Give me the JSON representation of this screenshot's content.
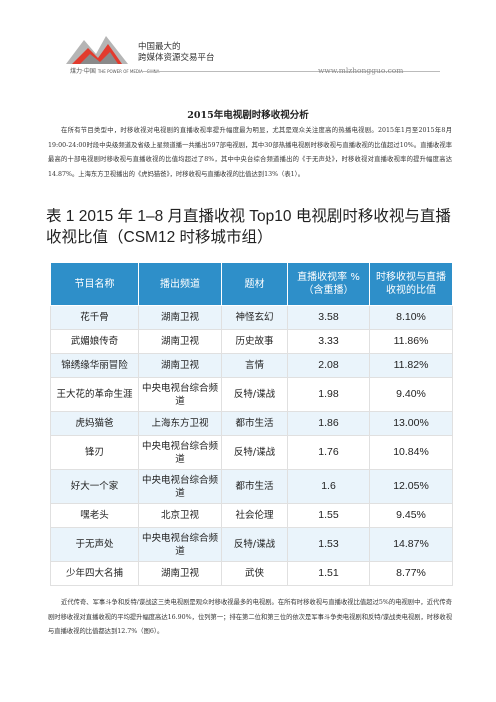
{
  "header": {
    "logo_text": "煤力·中国",
    "logo_subtext": "THE POWER OF MEDIA · CHINA",
    "brand_line1": "中国最大的",
    "brand_line2": "跨媒体资源交易平台",
    "website": "www.mlzhongguo.com"
  },
  "document": {
    "title": "2015年电视剧时移收视分析",
    "paragraph1": "在所有节目类型中，时移收视对电视剧的直播收视率提升幅度最为明显，尤其是观众关注度高的热播电视剧。2015年1月至2015年8月19:00-24:00时段中央级频道及省级上星频道播一共播出597部电视剧，其中30部热播电视剧时移收视与直播收视的比值超过10%。直播收视率最高的十部电视剧时移收视与直播收视的比值均超过了8%，其中中央台综合频道播出的《于无声处》，时移收视对直播收视率的提升幅度高达14.87%。上海东方卫视播出的《虎妈猫爸》，时移收视与直播收视的比值达到13%（表1）。",
    "table_heading": "表 1 2015 年 1–8 月直播收视 Top10 电视剧时移收视与直播收视比值（CSM12 时移城市组）",
    "paragraph2": "近代传奇、军事斗争和反特/谍战这三类电视剧是观众时移收视最多的电视剧。在所有时移收视与直播收视比值超过5%的电视剧中，近代传奇剧时移收视对直播收视的平均提升幅度高达16.90%，位列第一；排在第二位和第三位的依次是军事斗争类电视剧和反特/谍战类电视剧，时移收视与直播收视的比值都达到12.7%（图6）。"
  },
  "table": {
    "headers": [
      "节目名称",
      "播出频道",
      "题材",
      "直播收视率 %（含重播）",
      "时移收视与直播收视的比值"
    ],
    "rows": [
      {
        "name": "花千骨",
        "channel": "湖南卫视",
        "genre": "神怪玄幻",
        "rating": "3.58",
        "ratio": "8.10%"
      },
      {
        "name": "武媚娘传奇",
        "channel": "湖南卫视",
        "genre": "历史故事",
        "rating": "3.33",
        "ratio": "11.86%"
      },
      {
        "name": "锦绣缘华丽冒险",
        "channel": "湖南卫视",
        "genre": "言情",
        "rating": "2.08",
        "ratio": "11.82%"
      },
      {
        "name": "王大花的革命生涯",
        "channel": "中央电视台综合频道",
        "genre": "反特/谍战",
        "rating": "1.98",
        "ratio": "9.40%"
      },
      {
        "name": "虎妈猫爸",
        "channel": "上海东方卫视",
        "genre": "都市生活",
        "rating": "1.86",
        "ratio": "13.00%"
      },
      {
        "name": "锋刃",
        "channel": "中央电视台综合频道",
        "genre": "反特/谍战",
        "rating": "1.76",
        "ratio": "10.84%"
      },
      {
        "name": "好大一个家",
        "channel": "中央电视台综合频道",
        "genre": "都市生活",
        "rating": "1.6",
        "ratio": "12.05%"
      },
      {
        "name": "嘿老头",
        "channel": "北京卫视",
        "genre": "社会伦理",
        "rating": "1.55",
        "ratio": "9.45%"
      },
      {
        "name": "于无声处",
        "channel": "中央电视台综合频道",
        "genre": "反特/谍战",
        "rating": "1.53",
        "ratio": "14.87%"
      },
      {
        "name": "少年四大名捕",
        "channel": "湖南卫视",
        "genre": "武侠",
        "rating": "1.51",
        "ratio": "8.77%"
      }
    ]
  }
}
